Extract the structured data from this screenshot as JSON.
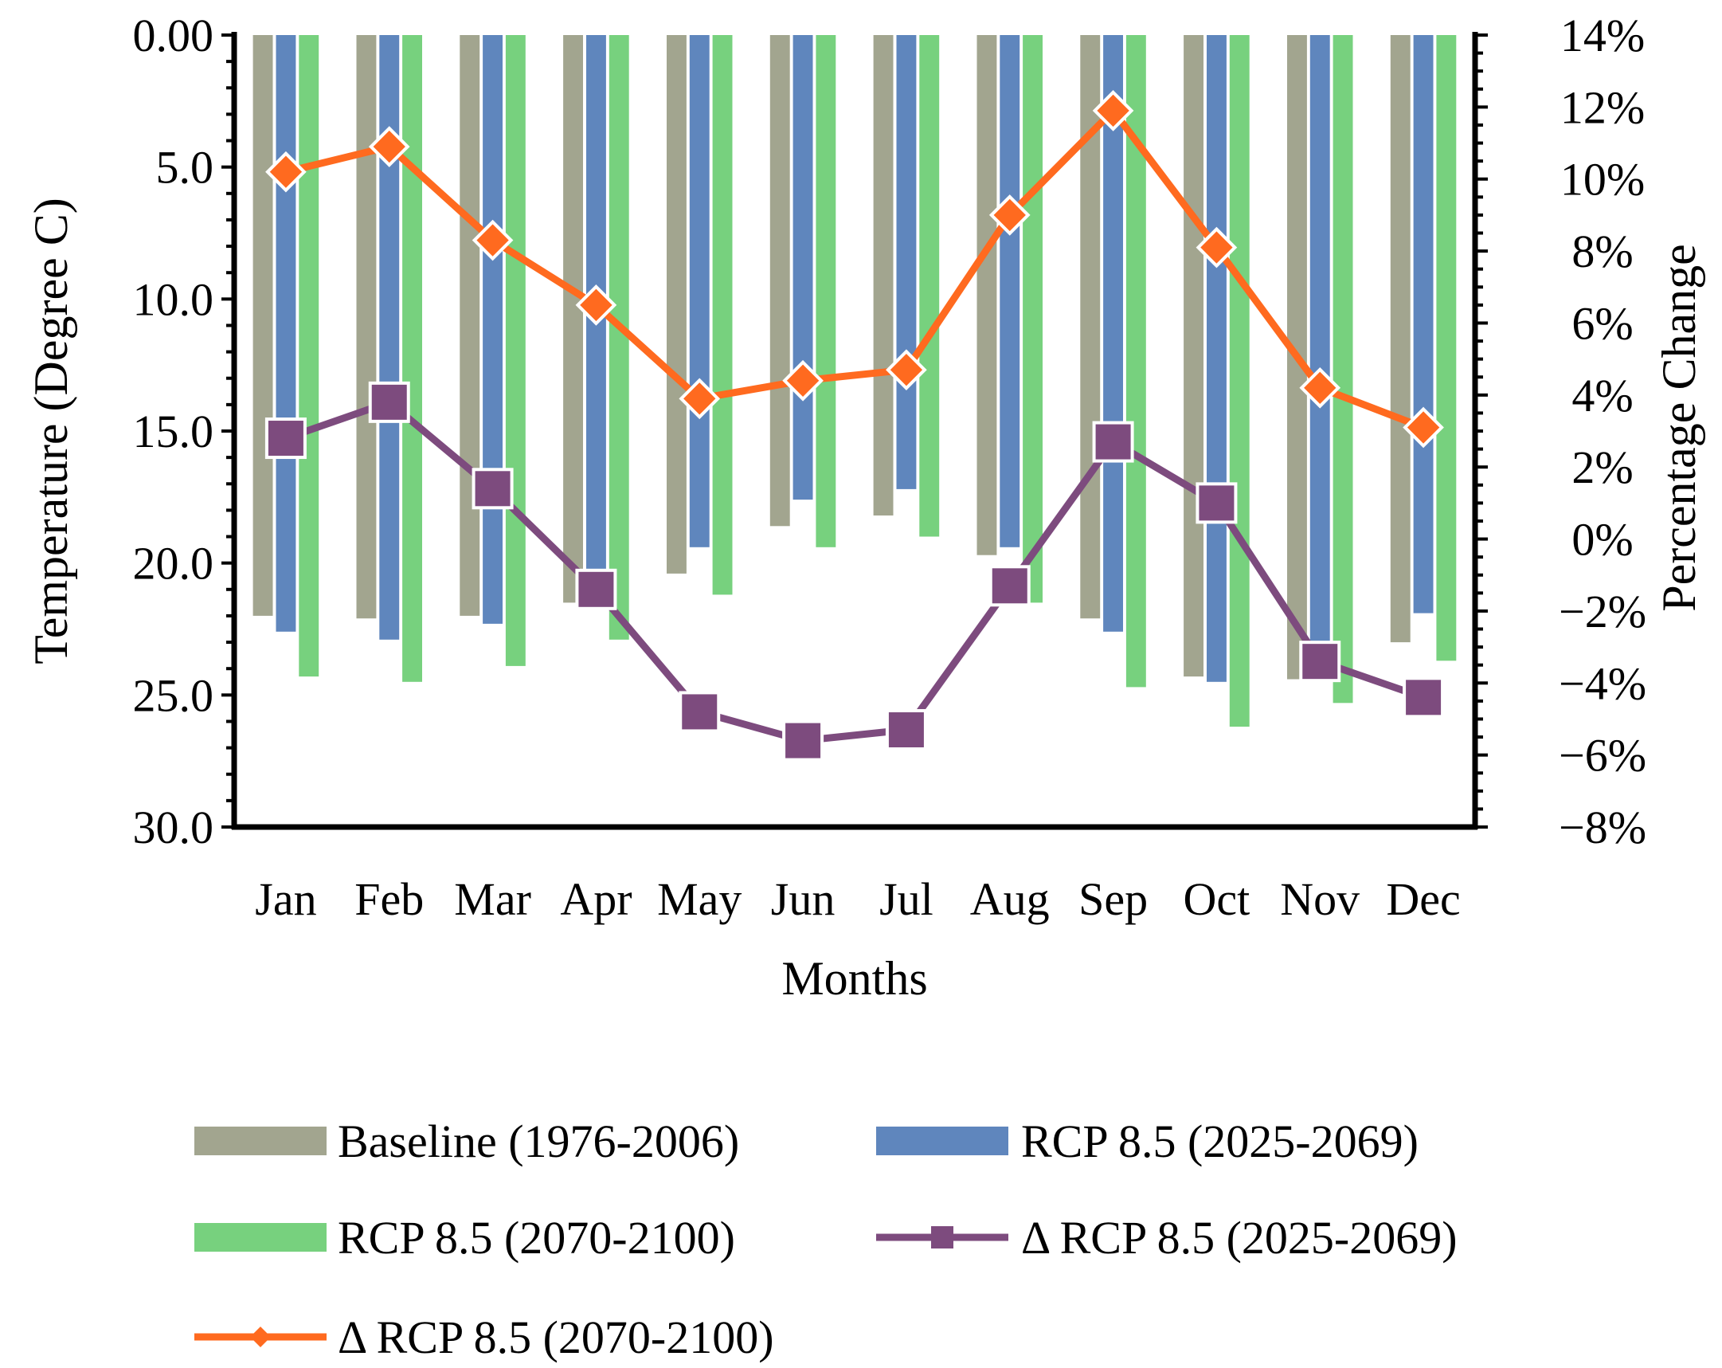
{
  "chart_data": {
    "type": "bar",
    "title": "",
    "xlabel": "Months",
    "ylabel": "Temperature (Degree C)",
    "y2label": "Percentage Change",
    "categories": [
      "Jan",
      "Feb",
      "Mar",
      "Apr",
      "May",
      "Jun",
      "Jul",
      "Aug",
      "Sep",
      "Oct",
      "Nov",
      "Dec"
    ],
    "ylim": [
      0,
      30
    ],
    "y_inverted": true,
    "y_ticks": [
      "0.00",
      "5.0",
      "10.0",
      "15.0",
      "20.0",
      "25.0",
      "30.0"
    ],
    "y_tick_values": [
      0,
      5,
      10,
      15,
      20,
      25,
      30
    ],
    "y2lim": [
      -8,
      14
    ],
    "y2_ticks": [
      "14%",
      "12%",
      "10%",
      "8%",
      "6%",
      "4%",
      "2%",
      "0%",
      "−2%",
      "−4%",
      "−6%",
      "−8%"
    ],
    "y2_tick_values": [
      14,
      12,
      10,
      8,
      6,
      4,
      2,
      0,
      -2,
      -4,
      -6,
      -8
    ],
    "grid": false,
    "legend_position": "bottom",
    "series": [
      {
        "name": "Baseline (1976-2006)",
        "kind": "bar",
        "axis": "left",
        "color": "#a2a58f",
        "values": [
          22.0,
          22.1,
          22.0,
          21.5,
          20.4,
          18.6,
          18.2,
          19.7,
          22.1,
          24.3,
          24.4,
          23.0
        ]
      },
      {
        "name": "RCP 8.5 (2025-2069)",
        "kind": "bar",
        "axis": "left",
        "color": "#5f86bd",
        "values": [
          22.6,
          22.9,
          22.3,
          21.2,
          19.4,
          17.6,
          17.2,
          19.4,
          22.6,
          24.5,
          23.6,
          21.9
        ]
      },
      {
        "name": "RCP 8.5 (2070-2100)",
        "kind": "bar",
        "axis": "left",
        "color": "#77d17e",
        "values": [
          24.3,
          24.5,
          23.9,
          22.9,
          21.2,
          19.4,
          19.0,
          21.5,
          24.7,
          26.2,
          25.3,
          23.7
        ]
      },
      {
        "name": "Δ RCP 8.5 (2025-2069)",
        "kind": "line",
        "axis": "right",
        "marker": "square",
        "color": "#7d4b7e",
        "values": [
          2.8,
          3.8,
          1.4,
          -1.4,
          -4.8,
          -5.6,
          -5.3,
          -1.3,
          2.7,
          1.0,
          -3.4,
          -4.4
        ]
      },
      {
        "name": "Δ  RCP 8.5 (2070-2100)",
        "kind": "line",
        "axis": "right",
        "marker": "diamond",
        "color": "#ff6a1f",
        "values": [
          10.2,
          10.9,
          8.3,
          6.5,
          3.9,
          4.4,
          4.7,
          9.0,
          11.9,
          8.1,
          4.2,
          3.1
        ]
      }
    ]
  }
}
